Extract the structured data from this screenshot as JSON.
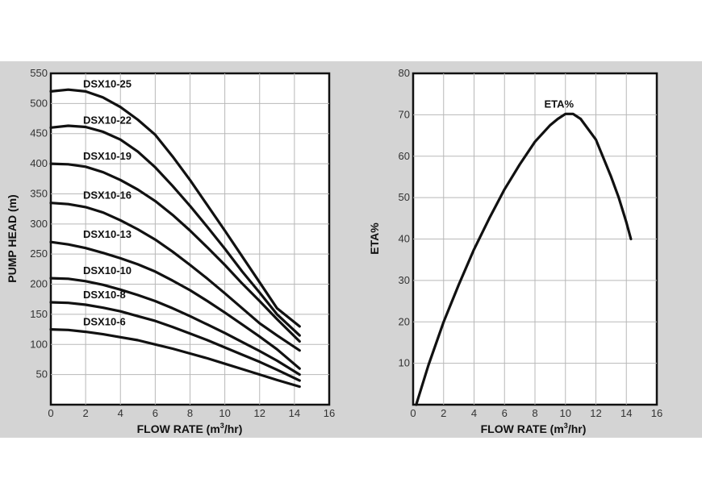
{
  "chart_data": [
    {
      "type": "line",
      "title": "",
      "xlabel_main": "FLOW RATE (m",
      "xlabel_sup": "3",
      "xlabel_tail": "/hr)",
      "ylabel": "PUMP HEAD (m)",
      "xlim": [
        0,
        16
      ],
      "ylim": [
        0,
        550
      ],
      "xticks": [
        "0",
        "2",
        "4",
        "6",
        "8",
        "10",
        "12",
        "14",
        "16"
      ],
      "yticks": [
        "50",
        "100",
        "150",
        "200",
        "250",
        "300",
        "350",
        "400",
        "450",
        "500",
        "550"
      ],
      "grid": true,
      "series": [
        {
          "name": "DSX10-25",
          "x": [
            0,
            1,
            2,
            3,
            4,
            5,
            6,
            7,
            8,
            9,
            10,
            11,
            12,
            13,
            14.3
          ],
          "y": [
            520,
            523,
            520,
            510,
            494,
            473,
            448,
            412,
            373,
            331,
            289,
            246,
            203,
            160,
            130
          ]
        },
        {
          "name": "DSX10-22",
          "x": [
            0,
            1,
            2,
            3,
            4,
            5,
            6,
            7,
            8,
            9,
            10,
            11,
            12,
            13,
            14.3
          ],
          "y": [
            460,
            463,
            461,
            453,
            440,
            420,
            394,
            363,
            330,
            295,
            259,
            221,
            186,
            150,
            115
          ]
        },
        {
          "name": "DSX10-19",
          "x": [
            0,
            1,
            2,
            3,
            4,
            5,
            6,
            7,
            8,
            9,
            10,
            11,
            12,
            13,
            14.3
          ],
          "y": [
            400,
            399,
            395,
            386,
            373,
            357,
            338,
            315,
            289,
            261,
            232,
            201,
            172,
            142,
            105
          ]
        },
        {
          "name": "DSX10-16",
          "x": [
            0,
            1,
            2,
            3,
            4,
            5,
            6,
            7,
            8,
            9,
            10,
            11,
            12,
            13,
            14.3
          ],
          "y": [
            335,
            333,
            328,
            319,
            306,
            291,
            274,
            254,
            232,
            209,
            185,
            160,
            135,
            115,
            90
          ]
        },
        {
          "name": "DSX10-13",
          "x": [
            0,
            1,
            2,
            3,
            4,
            5,
            6,
            7,
            8,
            9,
            10,
            11,
            12,
            13,
            14.3
          ],
          "y": [
            270,
            266,
            260,
            252,
            243,
            233,
            221,
            206,
            190,
            172,
            153,
            133,
            113,
            92,
            60
          ]
        },
        {
          "name": "DSX10-10",
          "x": [
            0,
            1,
            2,
            3,
            4,
            5,
            6,
            7,
            8,
            9,
            10,
            11,
            12,
            13,
            14.3
          ],
          "y": [
            210,
            209,
            205,
            199,
            191,
            182,
            172,
            160,
            147,
            133,
            119,
            104,
            89,
            73,
            50
          ]
        },
        {
          "name": "DSX10-8",
          "x": [
            0,
            1,
            2,
            3,
            4,
            5,
            6,
            7,
            8,
            9,
            10,
            11,
            12,
            13,
            14.3
          ],
          "y": [
            170,
            169,
            166,
            161,
            155,
            147,
            139,
            129,
            118,
            107,
            95,
            83,
            71,
            58,
            40
          ]
        },
        {
          "name": "DSX10-6",
          "x": [
            0,
            1,
            2,
            3,
            4,
            5,
            6,
            7,
            8,
            9,
            10,
            11,
            12,
            13,
            14.3
          ],
          "y": [
            125,
            124,
            121,
            117,
            112,
            107,
            100,
            93,
            85,
            77,
            68,
            59,
            50,
            41,
            30
          ]
        }
      ]
    },
    {
      "type": "line",
      "title": "",
      "xlabel_main": "FLOW RATE (m",
      "xlabel_sup": "3",
      "xlabel_tail": "/hr)",
      "ylabel": "ETA%",
      "xlim": [
        0,
        16
      ],
      "ylim": [
        0,
        80
      ],
      "xticks": [
        "0",
        "2",
        "4",
        "6",
        "8",
        "10",
        "12",
        "14",
        "16"
      ],
      "yticks": [
        "10",
        "20",
        "30",
        "40",
        "50",
        "60",
        "70",
        "80"
      ],
      "grid": true,
      "series": [
        {
          "name": "ETA%",
          "x": [
            0.2,
            1,
            2,
            3,
            4,
            5,
            6,
            7,
            8,
            9,
            9.5,
            10,
            10.5,
            11,
            12,
            13,
            13.5,
            14,
            14.3
          ],
          "y": [
            0,
            9.5,
            20,
            29,
            37.5,
            45,
            52,
            58,
            63.5,
            67.5,
            69,
            70.2,
            70.2,
            69,
            64,
            55,
            50,
            44,
            40
          ]
        }
      ]
    }
  ]
}
